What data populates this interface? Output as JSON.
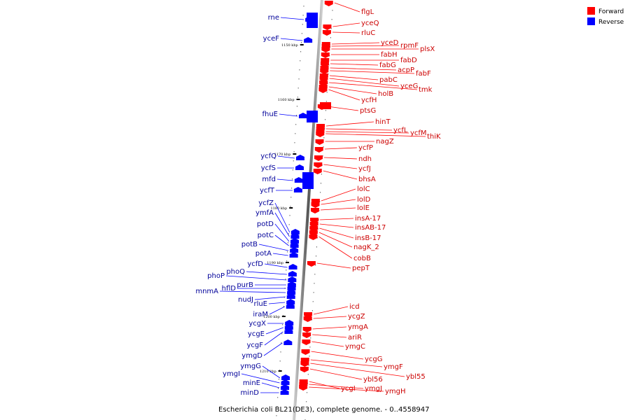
{
  "legend": [
    {
      "label": "Forward",
      "color": "#ff0000"
    },
    {
      "label": "Reverse",
      "color": "#0000ff"
    }
  ],
  "caption": "Escherichia coli BL21(DE3), complete genome. - 0..4558947",
  "kbp_marks": [
    "1150 kbp",
    "1160 kbp",
    "1170 kbp",
    "1180 kbp",
    "1190 kbp",
    "1200 kbp",
    "1210 kbp"
  ],
  "forward_genes": [
    "flgL",
    "yceQ",
    "rluC",
    "yceD",
    "rpmF",
    "plsX",
    "fabH",
    "fabD",
    "fabG",
    "acpP",
    "fabF",
    "pabC",
    "yceG",
    "tmk",
    "holB",
    "ycfH",
    "ptsG",
    "hinT",
    "ycfL",
    "ycfM",
    "thiK",
    "nagZ",
    "ycfP",
    "ndh",
    "ycfJ",
    "bhsA",
    "lolC",
    "lolD",
    "lolE",
    "insA-17",
    "insAB-17",
    "insB-17",
    "nagK_2",
    "cobB",
    "pepT",
    "icd",
    "ycgZ",
    "ymgA",
    "ariR",
    "ymgC",
    "ycgG",
    "ymgF",
    "ybl55",
    "ybl56",
    "ycgI",
    "ymgJ",
    "ymgH"
  ],
  "reverse_genes": [
    "rne",
    "yceF",
    "fhuE",
    "ycfQ",
    "ycfS",
    "mfd",
    "ycfT",
    "ycfZ",
    "ymfA",
    "potD",
    "potC",
    "potB",
    "potA",
    "ycfD",
    "phoQ",
    "phoP",
    "purB",
    "hflD",
    "mnmA",
    "nudJ",
    "rluE",
    "iraM",
    "ycgX",
    "ycgE",
    "ycgF",
    "ymgD",
    "ymgG",
    "ymgI",
    "minE",
    "minD"
  ]
}
